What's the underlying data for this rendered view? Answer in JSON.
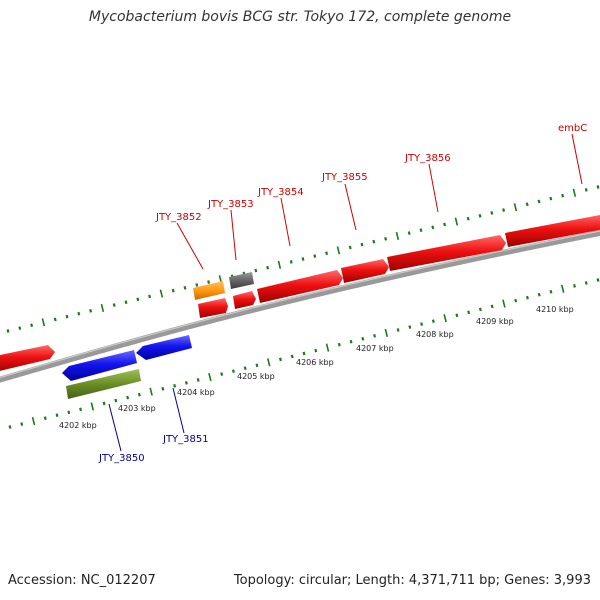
{
  "title": "Mycobacterium bovis BCG str. Tokyo 172, complete genome",
  "footer": {
    "accession": "Accession: NC_012207",
    "summary": "Topology: circular; Length: 4,371,711 bp; Genes: 3,993"
  },
  "colors": {
    "forward_gene": "#ee1111",
    "reverse_gene": "#1414ee",
    "orange_gene": "#ff9a10",
    "gray_gene": "#666666",
    "olive_gene": "#6b8e23",
    "backbone": "#888888",
    "ticks": "#1d7a1d",
    "forward_label": "#cc0000",
    "reverse_label": "#000099",
    "kbp_label": "#222222"
  },
  "kbp_labels": [
    "4202 kbp",
    "4203 kbp",
    "4204 kbp",
    "4205 kbp",
    "4206 kbp",
    "4207 kbp",
    "4208 kbp",
    "4209 kbp",
    "4210 kbp"
  ],
  "forward_labels": [
    "JTY_3852",
    "JTY_3853",
    "JTY_3854",
    "JTY_3855",
    "JTY_3856",
    "embC"
  ],
  "reverse_labels": [
    "JTY_3850",
    "JTY_3851"
  ]
}
